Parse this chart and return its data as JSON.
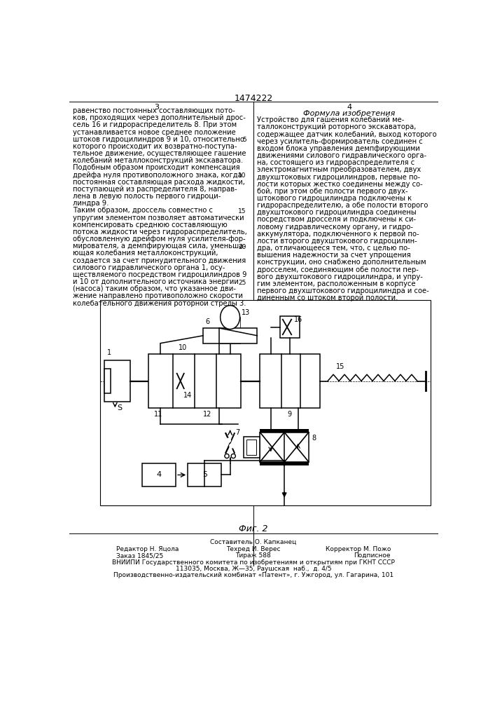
{
  "patent_number": "1474222",
  "page_left": "3",
  "page_right": "4",
  "title_right": "Формула изобретения",
  "figure_label": "Фиг. 2",
  "text_left": [
    "равенство постоянных составляющих пото-",
    "ков, проходящих через дополнительный дрос-",
    "сель 16 и гидрораспределитель 8. При этом",
    "устанавливается новое среднее положение",
    "штоков гидроцилиндров 9 и 10, относительно",
    "которого происходит их возвратно-поступа-",
    "тельное движение, осуществляющее гашение",
    "колебаний металлоконструкций экскаватора.",
    "Подобным образом происходит компенсация",
    "дрейфа нуля противоположного знака, когда",
    "постоянная составляющая расхода жидкости,",
    "поступающей из распределителя 8, направ-",
    "лена в левую полость первого гидроци-",
    "линдра 9.",
    "Таким образом, дроссель совместно с",
    "упругим элементом позволяет автоматически",
    "компенсировать среднюю составляющую",
    "потока жидкости через гидрораспределитель,",
    "обусловленную дрейфом нуля усилителя-фор-",
    "мирователя, а демпфирующая сила, уменьша-",
    "ющая колебания металлоконструкций,",
    "создается за счет принудительного движения",
    "силового гидравлического органа 1, осу-",
    "ществляемого посредством гидроцилиндров 9",
    "и 10 от дополнительного источника энергии",
    "(насоса) таким образом, что указанное дви-",
    "жение направлено противоположно скорости",
    "колебательного движения роторной стрелы 3."
  ],
  "text_right": [
    "Устройство для гашения колебаний ме-",
    "таллоконструкций роторного экскаватора,",
    "содержащее датчик колебаний, выход которого",
    "через усилитель-формирователь соединен с",
    "входом блока управления демпфирующими",
    "движениями силового гидравлического орга-",
    "на, состоящего из гидрораспределителя с",
    "электромагнитным преобразователем, двух",
    "двухштоковых гидроцилиндров, первые по-",
    "лости которых жестко соединены между со-",
    "бой, при этом обе полости первого двух-",
    "штокового гидроцилиндра подключены к",
    "гидрораспределителю, а обе полости второго",
    "двухштокового гидроцилиндра соединены",
    "посредством дросселя и подключены к си-",
    "ловому гидравлическому органу, и гидро-",
    "аккумулятора, подключенного к первой по-",
    "лости второго двухштокового гидроцилин-",
    "дра, отличающееся тем, что, с целью по-",
    "вышения надежности за счет упрощения",
    "конструкции, оно снабжено дополнительным",
    "дросселем, соединяющим обе полости пер-",
    "вого двухштокового гидроцилиндра, и упру-",
    "гим элементом, расположенным в корпусе",
    "первого двухштокового гидроцилиндра и сое-",
    "диненным со штоком второй полости."
  ],
  "footer_line0": "Составитель О. Капканец",
  "footer_left1": "Редактор Н. Яцола",
  "footer_center1": "Техред И. Верес",
  "footer_right1": "Корректор М. Пожо",
  "footer_left2": "Заказ 1845/25",
  "footer_center2": "Тираж 588",
  "footer_right2": "Подписное",
  "footer_line3": "ВНИИПИ Государственного комитета по изобретениям и открытиям при ГКНТ СССР",
  "footer_line4": "113035, Москва, Ж—35, Раушская  наб.,  д. 4/5",
  "footer_line5": "Производственно-издательский комбинат «Патент», г. Ужгород, ул. Гагарина, 101",
  "bg_color": "#ffffff"
}
